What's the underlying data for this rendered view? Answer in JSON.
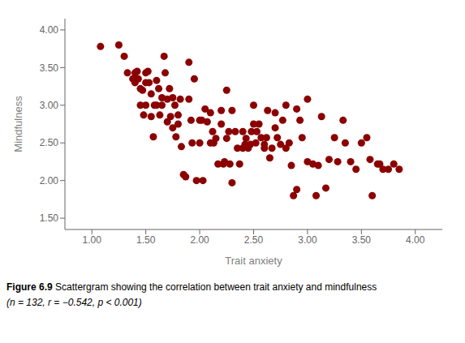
{
  "chart_data": {
    "type": "scatter",
    "xlabel": "Trait anxiety",
    "ylabel": "Mindfulness",
    "xlim": [
      0.75,
      4.25
    ],
    "ylim": [
      1.35,
      4.15
    ],
    "xticks": [
      {
        "value": 1.0,
        "label": "1.00"
      },
      {
        "value": 1.5,
        "label": "1.50"
      },
      {
        "value": 2.0,
        "label": "2.00"
      },
      {
        "value": 2.5,
        "label": "2.50"
      },
      {
        "value": 3.0,
        "label": "3.00"
      },
      {
        "value": 3.5,
        "label": "3.50"
      },
      {
        "value": 4.0,
        "label": "4.00"
      }
    ],
    "yticks": [
      {
        "value": 1.5,
        "label": "1.50"
      },
      {
        "value": 2.0,
        "label": "2.00"
      },
      {
        "value": 2.5,
        "label": "2.50"
      },
      {
        "value": 3.0,
        "label": "3.00"
      },
      {
        "value": 3.5,
        "label": "3.50"
      },
      {
        "value": 4.0,
        "label": "4.00"
      }
    ],
    "grid": false,
    "color": "#8B0000",
    "annotations": [
      "Figure 6.9",
      "Scattergram showing the correlation between trait anxiety and mindfulness",
      "(n = 132, r = −0.542, p < 0.001)"
    ],
    "x": [
      1.08,
      1.25,
      1.3,
      1.33,
      1.38,
      1.4,
      1.4,
      1.42,
      1.43,
      1.45,
      1.45,
      1.47,
      1.48,
      1.5,
      1.5,
      1.5,
      1.52,
      1.53,
      1.55,
      1.55,
      1.57,
      1.58,
      1.6,
      1.6,
      1.62,
      1.63,
      1.65,
      1.65,
      1.67,
      1.68,
      1.7,
      1.7,
      1.72,
      1.73,
      1.75,
      1.75,
      1.77,
      1.78,
      1.8,
      1.8,
      1.82,
      1.83,
      1.85,
      1.87,
      1.9,
      1.9,
      1.92,
      1.93,
      1.95,
      1.97,
      2.0,
      2.0,
      2.02,
      2.03,
      2.05,
      2.07,
      2.1,
      2.1,
      2.12,
      2.13,
      2.15,
      2.17,
      2.2,
      2.2,
      2.22,
      2.23,
      2.25,
      2.25,
      2.27,
      2.28,
      2.3,
      2.3,
      2.33,
      2.35,
      2.37,
      2.4,
      2.4,
      2.42,
      2.43,
      2.45,
      2.47,
      2.48,
      2.5,
      2.5,
      2.52,
      2.53,
      2.55,
      2.57,
      2.6,
      2.6,
      2.62,
      2.63,
      2.65,
      2.67,
      2.7,
      2.7,
      2.72,
      2.75,
      2.77,
      2.8,
      2.8,
      2.83,
      2.85,
      2.87,
      2.9,
      2.9,
      2.93,
      2.95,
      3.0,
      3.0,
      3.05,
      3.08,
      3.1,
      3.13,
      3.17,
      3.2,
      3.25,
      3.28,
      3.33,
      3.35,
      3.4,
      3.45,
      3.5,
      3.55,
      3.58,
      3.6,
      3.65,
      3.67,
      3.7,
      3.75,
      3.8,
      3.85
    ],
    "values": [
      3.78,
      3.8,
      3.65,
      3.43,
      3.35,
      3.43,
      3.3,
      3.45,
      3.35,
      3.22,
      3.0,
      3.2,
      2.87,
      3.43,
      3.3,
      3.0,
      3.45,
      3.3,
      3.15,
      2.85,
      2.58,
      3.0,
      3.33,
      3.0,
      3.22,
      2.87,
      3.0,
      3.1,
      3.65,
      3.43,
      3.08,
      2.78,
      3.22,
      2.85,
      3.1,
      2.7,
      3.0,
      2.58,
      2.87,
      2.75,
      3.08,
      2.45,
      2.08,
      2.05,
      3.57,
      3.08,
      2.8,
      2.5,
      3.35,
      2.0,
      2.8,
      2.5,
      2.8,
      2.0,
      2.95,
      2.78,
      2.5,
      2.9,
      2.65,
      2.5,
      2.56,
      2.22,
      2.93,
      2.75,
      2.22,
      2.25,
      3.2,
      2.56,
      2.65,
      2.22,
      2.93,
      1.97,
      2.65,
      2.43,
      2.22,
      2.65,
      2.43,
      2.48,
      2.56,
      2.43,
      2.48,
      2.65,
      3.0,
      2.75,
      2.5,
      2.65,
      2.75,
      2.57,
      2.43,
      2.48,
      2.57,
      2.93,
      2.3,
      2.43,
      2.9,
      2.7,
      2.57,
      2.48,
      2.8,
      3.0,
      2.43,
      2.5,
      2.2,
      1.8,
      2.95,
      1.88,
      2.8,
      2.57,
      2.25,
      3.08,
      2.22,
      1.8,
      2.2,
      2.85,
      1.9,
      2.28,
      2.57,
      2.25,
      2.8,
      2.5,
      2.25,
      2.15,
      2.5,
      2.57,
      2.28,
      1.8,
      2.22,
      2.22,
      2.15,
      2.15,
      2.22,
      2.15
    ]
  }
}
